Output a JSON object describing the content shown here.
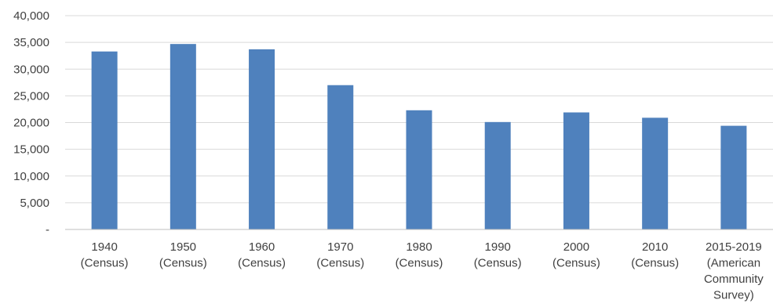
{
  "chart_data": {
    "type": "bar",
    "title": "",
    "xlabel": "",
    "ylabel": "",
    "categories": [
      [
        "1940",
        "(Census)"
      ],
      [
        "1950",
        "(Census)"
      ],
      [
        "1960",
        "(Census)"
      ],
      [
        "1970",
        "(Census)"
      ],
      [
        "1980",
        "(Census)"
      ],
      [
        "1990",
        "(Census)"
      ],
      [
        "2000",
        "(Census)"
      ],
      [
        "2010",
        "(Census)"
      ],
      [
        "2015-2019",
        "(American",
        "Community",
        "Survey)"
      ]
    ],
    "values": [
      33300,
      34700,
      33700,
      27000,
      22300,
      20100,
      21900,
      20900,
      19400
    ],
    "ylim": [
      0,
      40000
    ],
    "yticks": [
      0,
      5000,
      10000,
      15000,
      20000,
      25000,
      30000,
      35000,
      40000
    ],
    "ytick_labels": [
      "-",
      "5,000",
      "10,000",
      "15,000",
      "20,000",
      "25,000",
      "30,000",
      "35,000",
      "40,000"
    ],
    "grid": true,
    "legend": "none",
    "bar_color": "#4F81BD",
    "grid_color": "#D9D9D9",
    "axis_color": "#BFBFBF",
    "text_color": "#404040"
  }
}
